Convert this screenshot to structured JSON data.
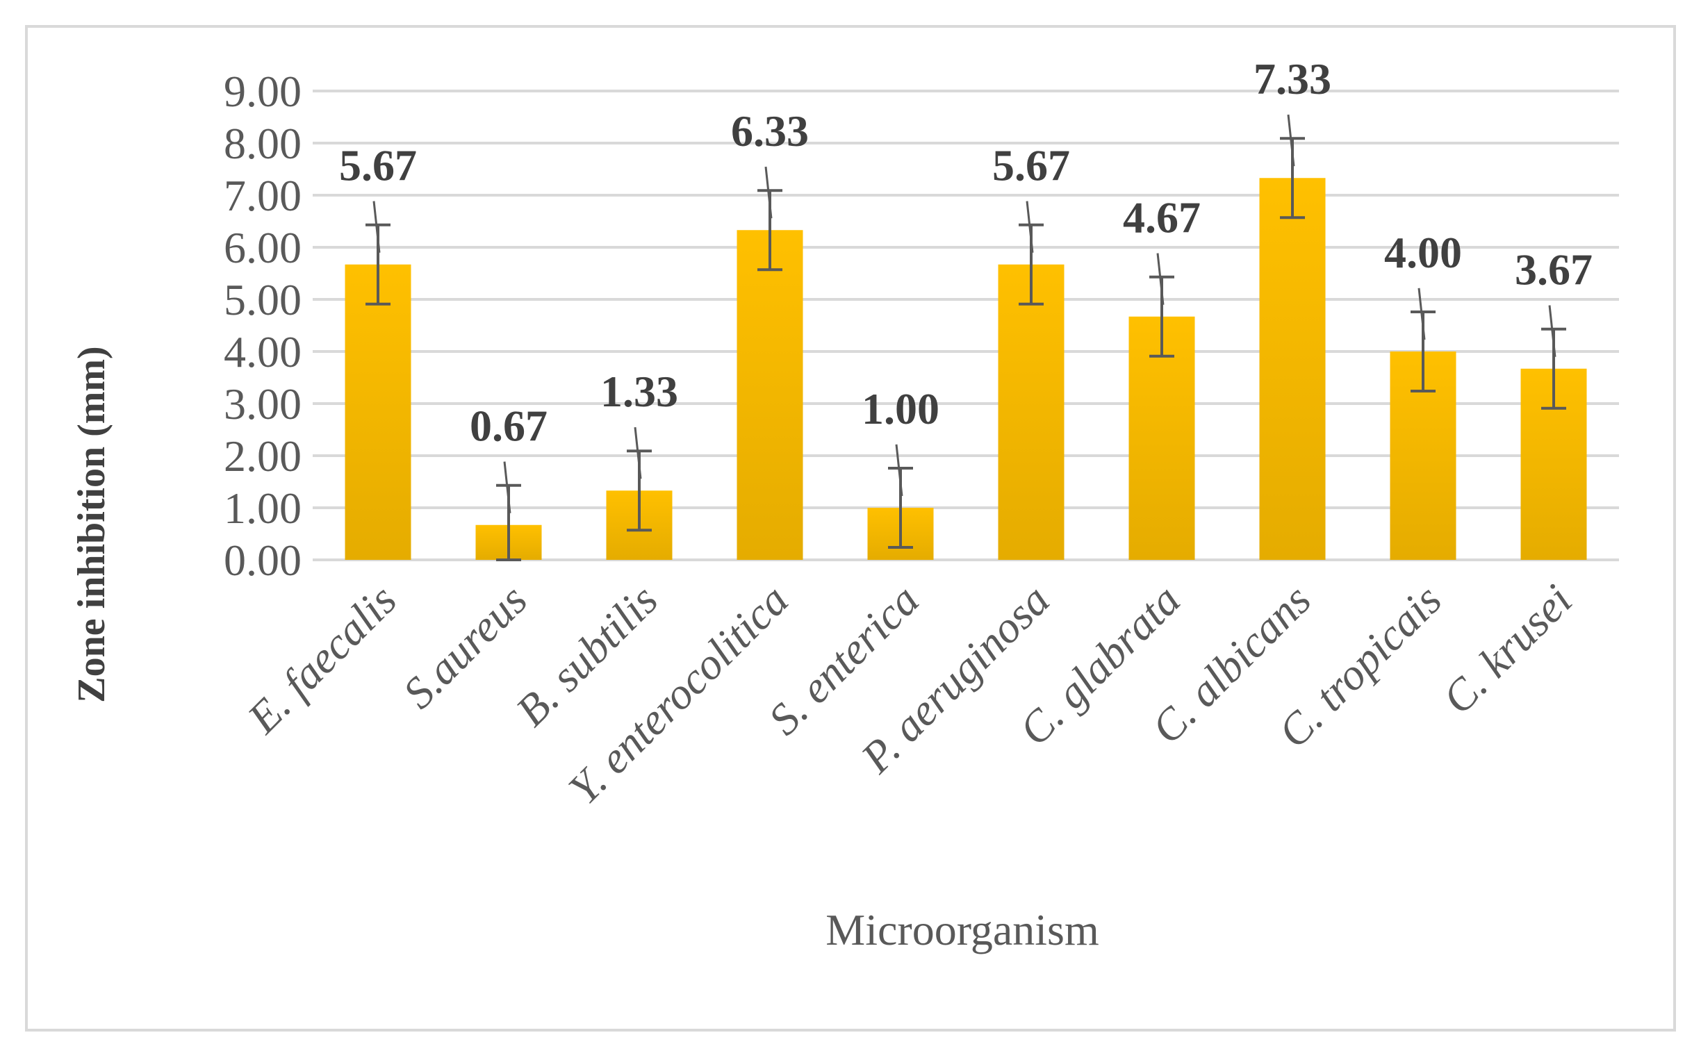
{
  "chart_data": {
    "type": "bar",
    "title": "",
    "xlabel": "Microorganism",
    "ylabel": "Zone inhibition (mm)",
    "ylim": [
      0,
      9
    ],
    "yticks": [
      "0.00",
      "1.00",
      "2.00",
      "3.00",
      "4.00",
      "5.00",
      "6.00",
      "7.00",
      "8.00",
      "9.00"
    ],
    "grid": true,
    "categories": [
      "E. faecalis",
      "S.aureus",
      "B. subtilis",
      "Y. enterocolitica",
      "S. enterica",
      "P. aeruginosa",
      "C. glabrata",
      "C. albicans",
      "C. tropicais",
      "C. krusei"
    ],
    "values": [
      5.67,
      0.67,
      1.33,
      6.33,
      1.0,
      5.67,
      4.67,
      7.33,
      4.0,
      3.67
    ],
    "value_labels": [
      "5.67",
      "0.67",
      "1.33",
      "6.33",
      "1.00",
      "5.67",
      "4.67",
      "7.33",
      "4.00",
      "3.67"
    ],
    "error": [
      0.76,
      0.76,
      0.76,
      0.76,
      0.76,
      0.76,
      0.76,
      0.76,
      0.76,
      0.76
    ],
    "bar_color": "#FFC000",
    "bar_color_dark": "#E5AC00",
    "error_color": "#595959",
    "grid_color": "#D9D9D9",
    "frame_color": "#D9D9D9"
  }
}
